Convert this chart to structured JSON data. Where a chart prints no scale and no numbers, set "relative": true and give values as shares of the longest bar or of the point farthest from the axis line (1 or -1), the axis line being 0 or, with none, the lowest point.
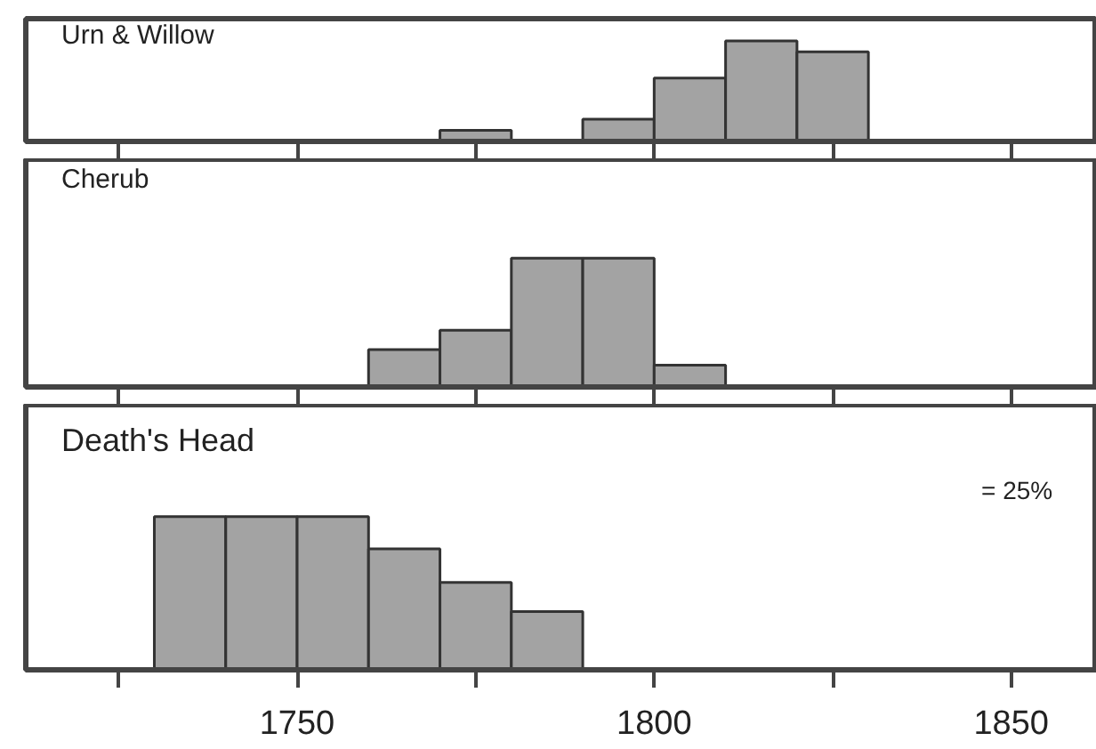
{
  "chart_data": [
    {
      "type": "bar",
      "title": "Urn & Willow",
      "relative": true,
      "x": [
        1775,
        1795,
        1805,
        1815,
        1825
      ],
      "values": [
        0.11,
        0.22,
        0.63,
        1,
        0.89
      ],
      "color": "#a3a3a3",
      "xlim": [
        1712,
        1862
      ],
      "xticks": [
        {
          "value": 1725,
          "label": null
        },
        {
          "value": 1750,
          "label": null
        },
        {
          "value": 1775,
          "label": null
        },
        {
          "value": 1800,
          "label": null
        },
        {
          "value": 1825,
          "label": null
        },
        {
          "value": 1850,
          "label": null
        }
      ],
      "tick_labels": false,
      "grid": false
    },
    {
      "type": "bar",
      "title": "Cherub",
      "relative": true,
      "x": [
        1765,
        1775,
        1785,
        1795,
        1805
      ],
      "values": [
        0.29,
        0.44,
        1,
        1,
        0.17
      ],
      "color": "#a3a3a3",
      "xlim": [
        1712,
        1862
      ],
      "xticks": [
        {
          "value": 1725,
          "label": null
        },
        {
          "value": 1750,
          "label": null
        },
        {
          "value": 1775,
          "label": null
        },
        {
          "value": 1800,
          "label": null
        },
        {
          "value": 1825,
          "label": null
        },
        {
          "value": 1850,
          "label": null
        }
      ],
      "tick_labels": false,
      "grid": false
    },
    {
      "type": "bar",
      "title": "Death's Head",
      "relative": true,
      "x": [
        1735,
        1745,
        1755,
        1765,
        1775,
        1785
      ],
      "values": [
        1,
        1,
        1,
        0.79,
        0.57,
        0.38
      ],
      "color": "#a3a3a3",
      "xlim": [
        1712,
        1862
      ],
      "xticks": [
        {
          "value": 1725,
          "label": null
        },
        1750,
        {
          "value": 1775,
          "label": null
        },
        1800,
        {
          "value": 1825,
          "label": null
        },
        1850
      ],
      "tick_labels": "x",
      "grid": false,
      "annotations": [
        "= 25%"
      ]
    }
  ]
}
